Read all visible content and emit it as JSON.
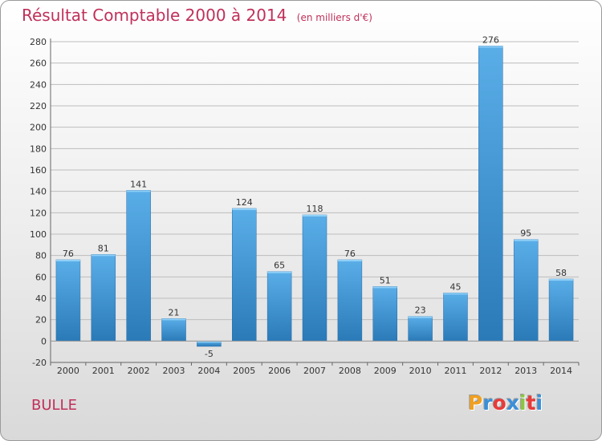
{
  "title": "Résultat Comptable 2000 à 2014",
  "subtitle": "(en milliers d'€)",
  "commune": "BULLE",
  "logo": {
    "letters": [
      "P",
      "r",
      "o",
      "x",
      "i",
      "t",
      "i"
    ],
    "colors": [
      "#f0a020",
      "#3a8fd8",
      "#e83a3a",
      "#3a8fd8",
      "#8cc63f",
      "#e83a3a",
      "#3a8fd8"
    ]
  },
  "colors": {
    "title": "#c0305a",
    "bar_light": "#5aaee8",
    "bar_dark": "#2a7ab8"
  },
  "chart_data": {
    "type": "bar",
    "title": "Résultat Comptable 2000 à 2014",
    "subtitle": "(en milliers d'€)",
    "categories": [
      "2000",
      "2001",
      "2002",
      "2003",
      "2004",
      "2005",
      "2006",
      "2007",
      "2008",
      "2009",
      "2010",
      "2011",
      "2012",
      "2013",
      "2014"
    ],
    "values": [
      76,
      81,
      141,
      21,
      -5,
      124,
      65,
      118,
      76,
      51,
      23,
      45,
      276,
      95,
      58
    ],
    "ylim": [
      -20,
      280
    ],
    "yticks": [
      -20,
      0,
      20,
      40,
      60,
      80,
      100,
      120,
      140,
      160,
      180,
      200,
      220,
      240,
      260,
      280
    ],
    "xlabel": "",
    "ylabel": "",
    "grid": true,
    "data_labels": true
  }
}
